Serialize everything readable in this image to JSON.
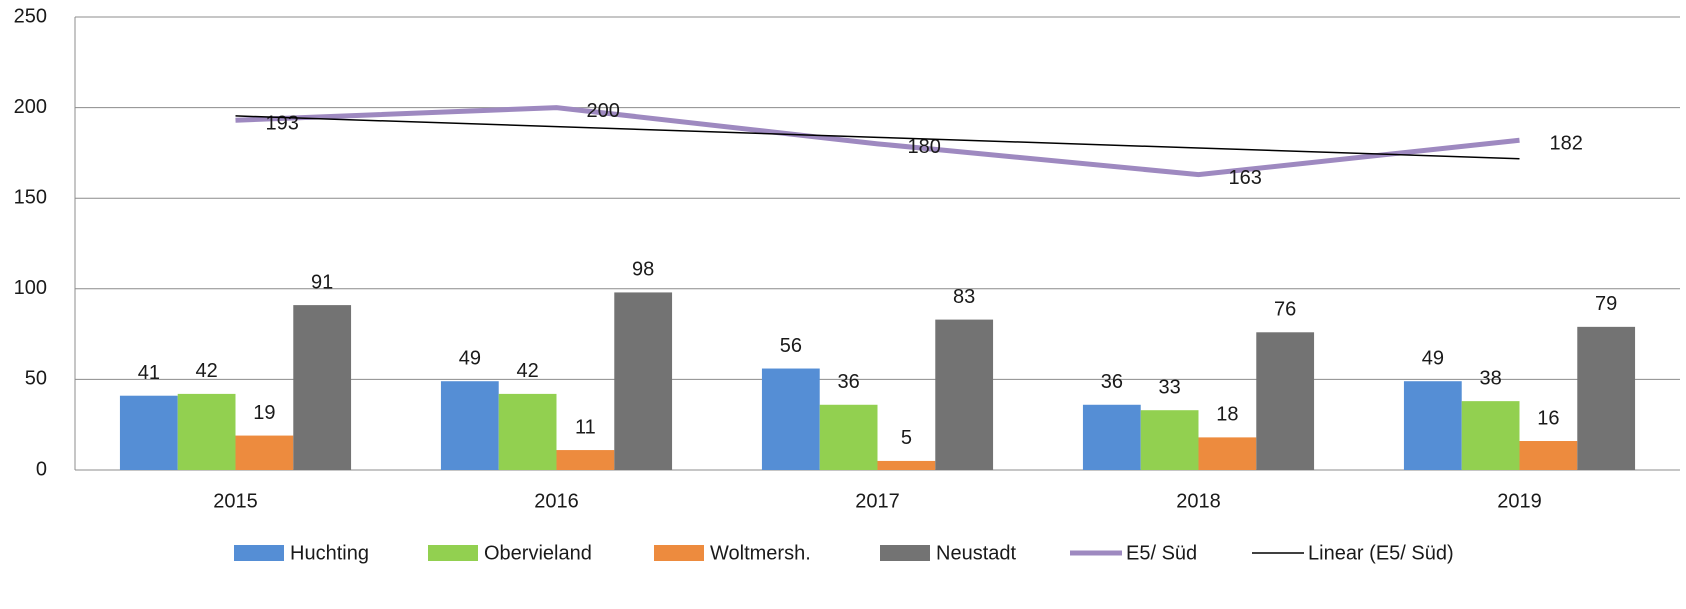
{
  "chart_data": {
    "type": "bar",
    "categories": [
      "2015",
      "2016",
      "2017",
      "2018",
      "2019"
    ],
    "series": [
      {
        "name": "Huchting",
        "type": "bar",
        "color": "#558ed5",
        "values": [
          41,
          49,
          56,
          36,
          49
        ]
      },
      {
        "name": "Obervieland",
        "type": "bar",
        "color": "#92d050",
        "values": [
          42,
          42,
          36,
          33,
          38
        ]
      },
      {
        "name": "Woltmersh.",
        "type": "bar",
        "color": "#ed8b3e",
        "values": [
          19,
          11,
          5,
          18,
          16
        ]
      },
      {
        "name": "Neustadt",
        "type": "bar",
        "color": "#737373",
        "values": [
          91,
          98,
          83,
          76,
          79
        ]
      },
      {
        "name": "E5/ Süd",
        "type": "line",
        "color": "#9e89c0",
        "values": [
          193,
          200,
          180,
          163,
          182
        ]
      },
      {
        "name": "Linear (E5/ Süd)",
        "type": "trend",
        "color": "#000000",
        "values": [
          195.4,
          189.5,
          183.6,
          177.7,
          171.8
        ]
      }
    ],
    "ylim": [
      0,
      250
    ],
    "yticks": [
      0,
      50,
      100,
      150,
      200,
      250
    ],
    "grid": true,
    "legend": "bottom"
  }
}
